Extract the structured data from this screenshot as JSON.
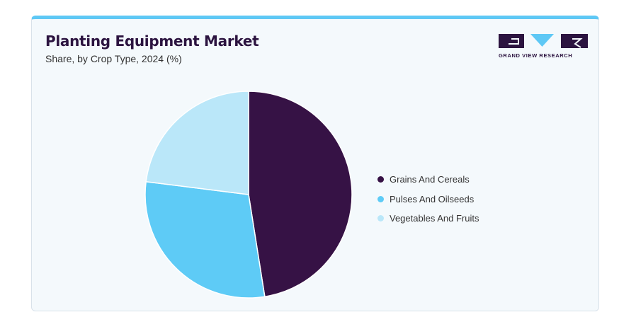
{
  "header": {
    "title": "Planting Equipment Market",
    "subtitle": "Share, by Crop Type, 2024 (%)"
  },
  "logo": {
    "text": "GRAND VIEW RESEARCH",
    "colors": [
      "#2c1440",
      "#5ec8f5"
    ]
  },
  "chart_data": {
    "type": "pie",
    "title": "Planting Equipment Market",
    "subtitle": "Share, by Crop Type, 2024 (%)",
    "legend_position": "right",
    "slices": [
      {
        "label": "Grains And Cereals",
        "value": 47.5,
        "color": "#361245"
      },
      {
        "label": "Pulses And Oilseeds",
        "value": 29.5,
        "color": "#5ecbf6"
      },
      {
        "label": "Vegetables And Fruits",
        "value": 23.0,
        "color": "#bae7f9"
      }
    ]
  }
}
